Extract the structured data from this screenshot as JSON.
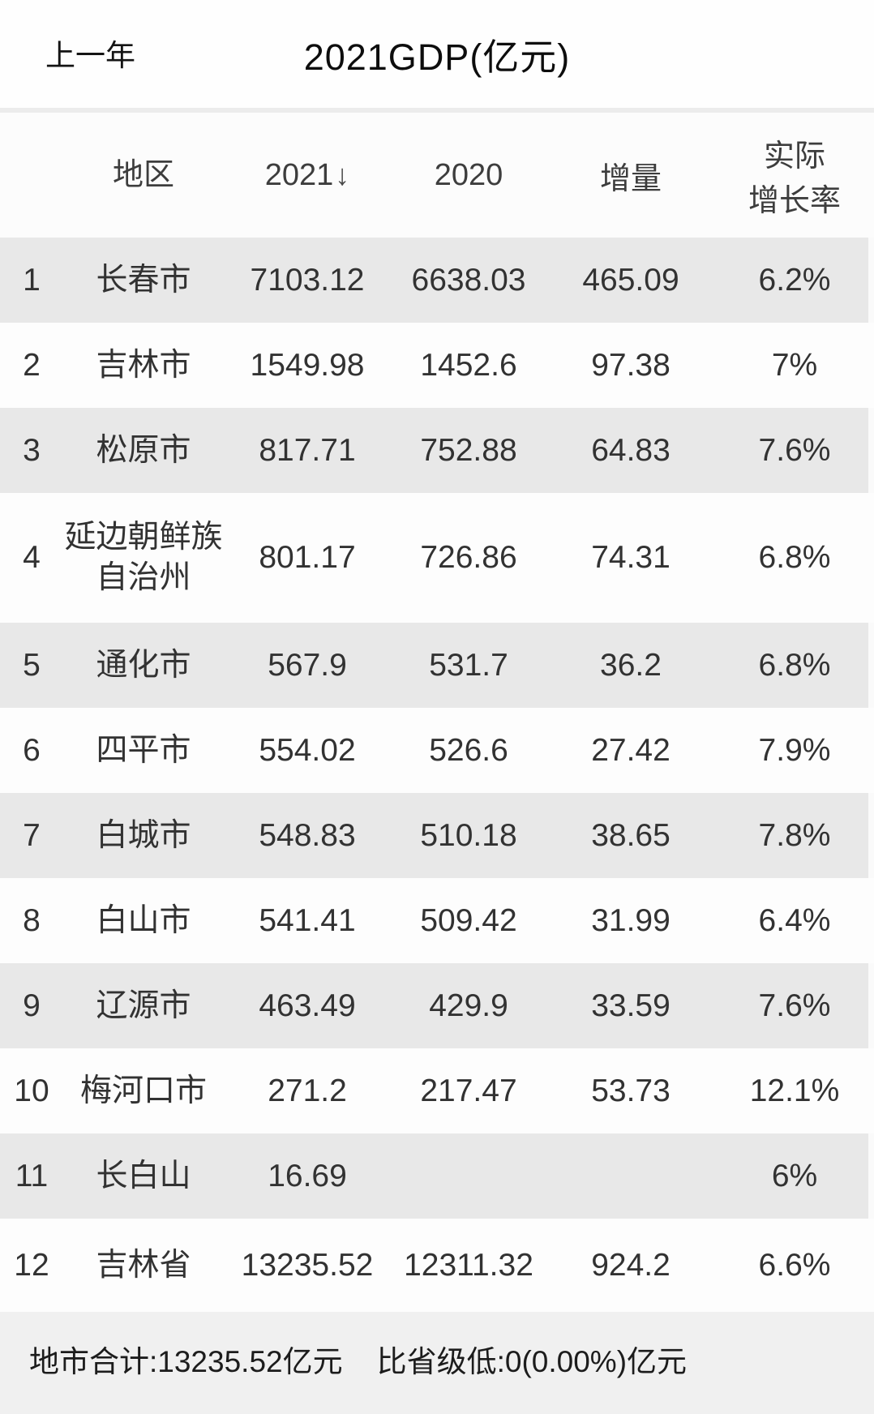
{
  "topbar": {
    "back_label": "上一年",
    "title": "2021GDP(亿元)"
  },
  "icons": {
    "sort_descending": "↓"
  },
  "table": {
    "headers": {
      "region": "地区",
      "y2021": "2021",
      "y2020": "2020",
      "increment": "增量",
      "growth_line1": "实际",
      "growth_line2": "增长率"
    },
    "rows": [
      {
        "rank": "1",
        "region": "长春市",
        "y2021": "7103.12",
        "y2020": "6638.03",
        "increment": "465.09",
        "growth": "6.2%"
      },
      {
        "rank": "2",
        "region": "吉林市",
        "y2021": "1549.98",
        "y2020": "1452.6",
        "increment": "97.38",
        "growth": "7%"
      },
      {
        "rank": "3",
        "region": "松原市",
        "y2021": "817.71",
        "y2020": "752.88",
        "increment": "64.83",
        "growth": "7.6%"
      },
      {
        "rank": "4",
        "region": "延边朝鲜族自治州",
        "y2021": "801.17",
        "y2020": "726.86",
        "increment": "74.31",
        "growth": "6.8%"
      },
      {
        "rank": "5",
        "region": "通化市",
        "y2021": "567.9",
        "y2020": "531.7",
        "increment": "36.2",
        "growth": "6.8%"
      },
      {
        "rank": "6",
        "region": "四平市",
        "y2021": "554.02",
        "y2020": "526.6",
        "increment": "27.42",
        "growth": "7.9%"
      },
      {
        "rank": "7",
        "region": "白城市",
        "y2021": "548.83",
        "y2020": "510.18",
        "increment": "38.65",
        "growth": "7.8%"
      },
      {
        "rank": "8",
        "region": "白山市",
        "y2021": "541.41",
        "y2020": "509.42",
        "increment": "31.99",
        "growth": "6.4%"
      },
      {
        "rank": "9",
        "region": "辽源市",
        "y2021": "463.49",
        "y2020": "429.9",
        "increment": "33.59",
        "growth": "7.6%"
      },
      {
        "rank": "10",
        "region": "梅河口市",
        "y2021": "271.2",
        "y2020": "217.47",
        "increment": "53.73",
        "growth": "12.1%"
      },
      {
        "rank": "11",
        "region": "长白山",
        "y2021": "16.69",
        "y2020": "",
        "increment": "",
        "growth": "6%"
      },
      {
        "rank": "12",
        "region": "吉林省",
        "y2021": "13235.52",
        "y2020": "12311.32",
        "increment": "924.2",
        "growth": "6.6%"
      }
    ]
  },
  "footer": {
    "summary_left": "地市合计:13235.52亿元",
    "summary_right": "比省级低:0(0.00%)亿元"
  },
  "colors": {
    "stripe_row_bg": "#e8e8e8",
    "plain_row_bg": "#fdfdfd",
    "footer_bg": "#f0f0f0",
    "divider": "#ececec",
    "text": "#323232"
  }
}
